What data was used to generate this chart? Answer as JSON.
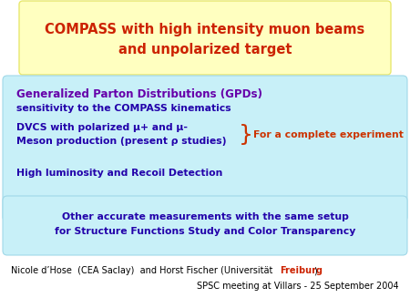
{
  "title_line1": "COMPASS with high intensity muon beams",
  "title_line2": "and unpolarized target",
  "title_color": "#cc2200",
  "title_bg": "#ffffc0",
  "title_border": "#e8e870",
  "title_fontsize": 10.5,
  "box1_bg": "#c8f0f8",
  "box1_border": "#a0d8e8",
  "box1_line1": "Generalized Parton Distributions (GPDs)",
  "box1_line2": "sensitivity to the COMPASS kinematics",
  "box1_line3a": "DVCS with polarized μ+ and μ-",
  "box1_line3b": "Meson production (present ρ studies)",
  "box1_brace_text": "For a complete experiment",
  "box1_line4": "High luminosity and Recoil Detection",
  "box1_color_head": "#6600aa",
  "box1_color_body": "#2200aa",
  "box1_color_brace": "#cc3300",
  "box2_bg": "#c8f0f8",
  "box2_border": "#a0d8e8",
  "box2_line1": "Other accurate measurements with the same setup",
  "box2_line2": "for Structure Functions Study and Color Transparency",
  "box2_color": "#2200aa",
  "footer_line1a": "Nicole d’Hose  (CEA Saclay)  and Horst Fischer (Universität ",
  "footer_freiburg": "Freiburg",
  "footer_line1c": ")",
  "footer_line2": "SPSC meeting at Villars - 25 September 2004",
  "footer_color": "#000000",
  "footer_freiburg_color": "#cc2200",
  "bg_color": "#ffffff",
  "body_fontsize": 7.8,
  "footer_fontsize": 7.0
}
